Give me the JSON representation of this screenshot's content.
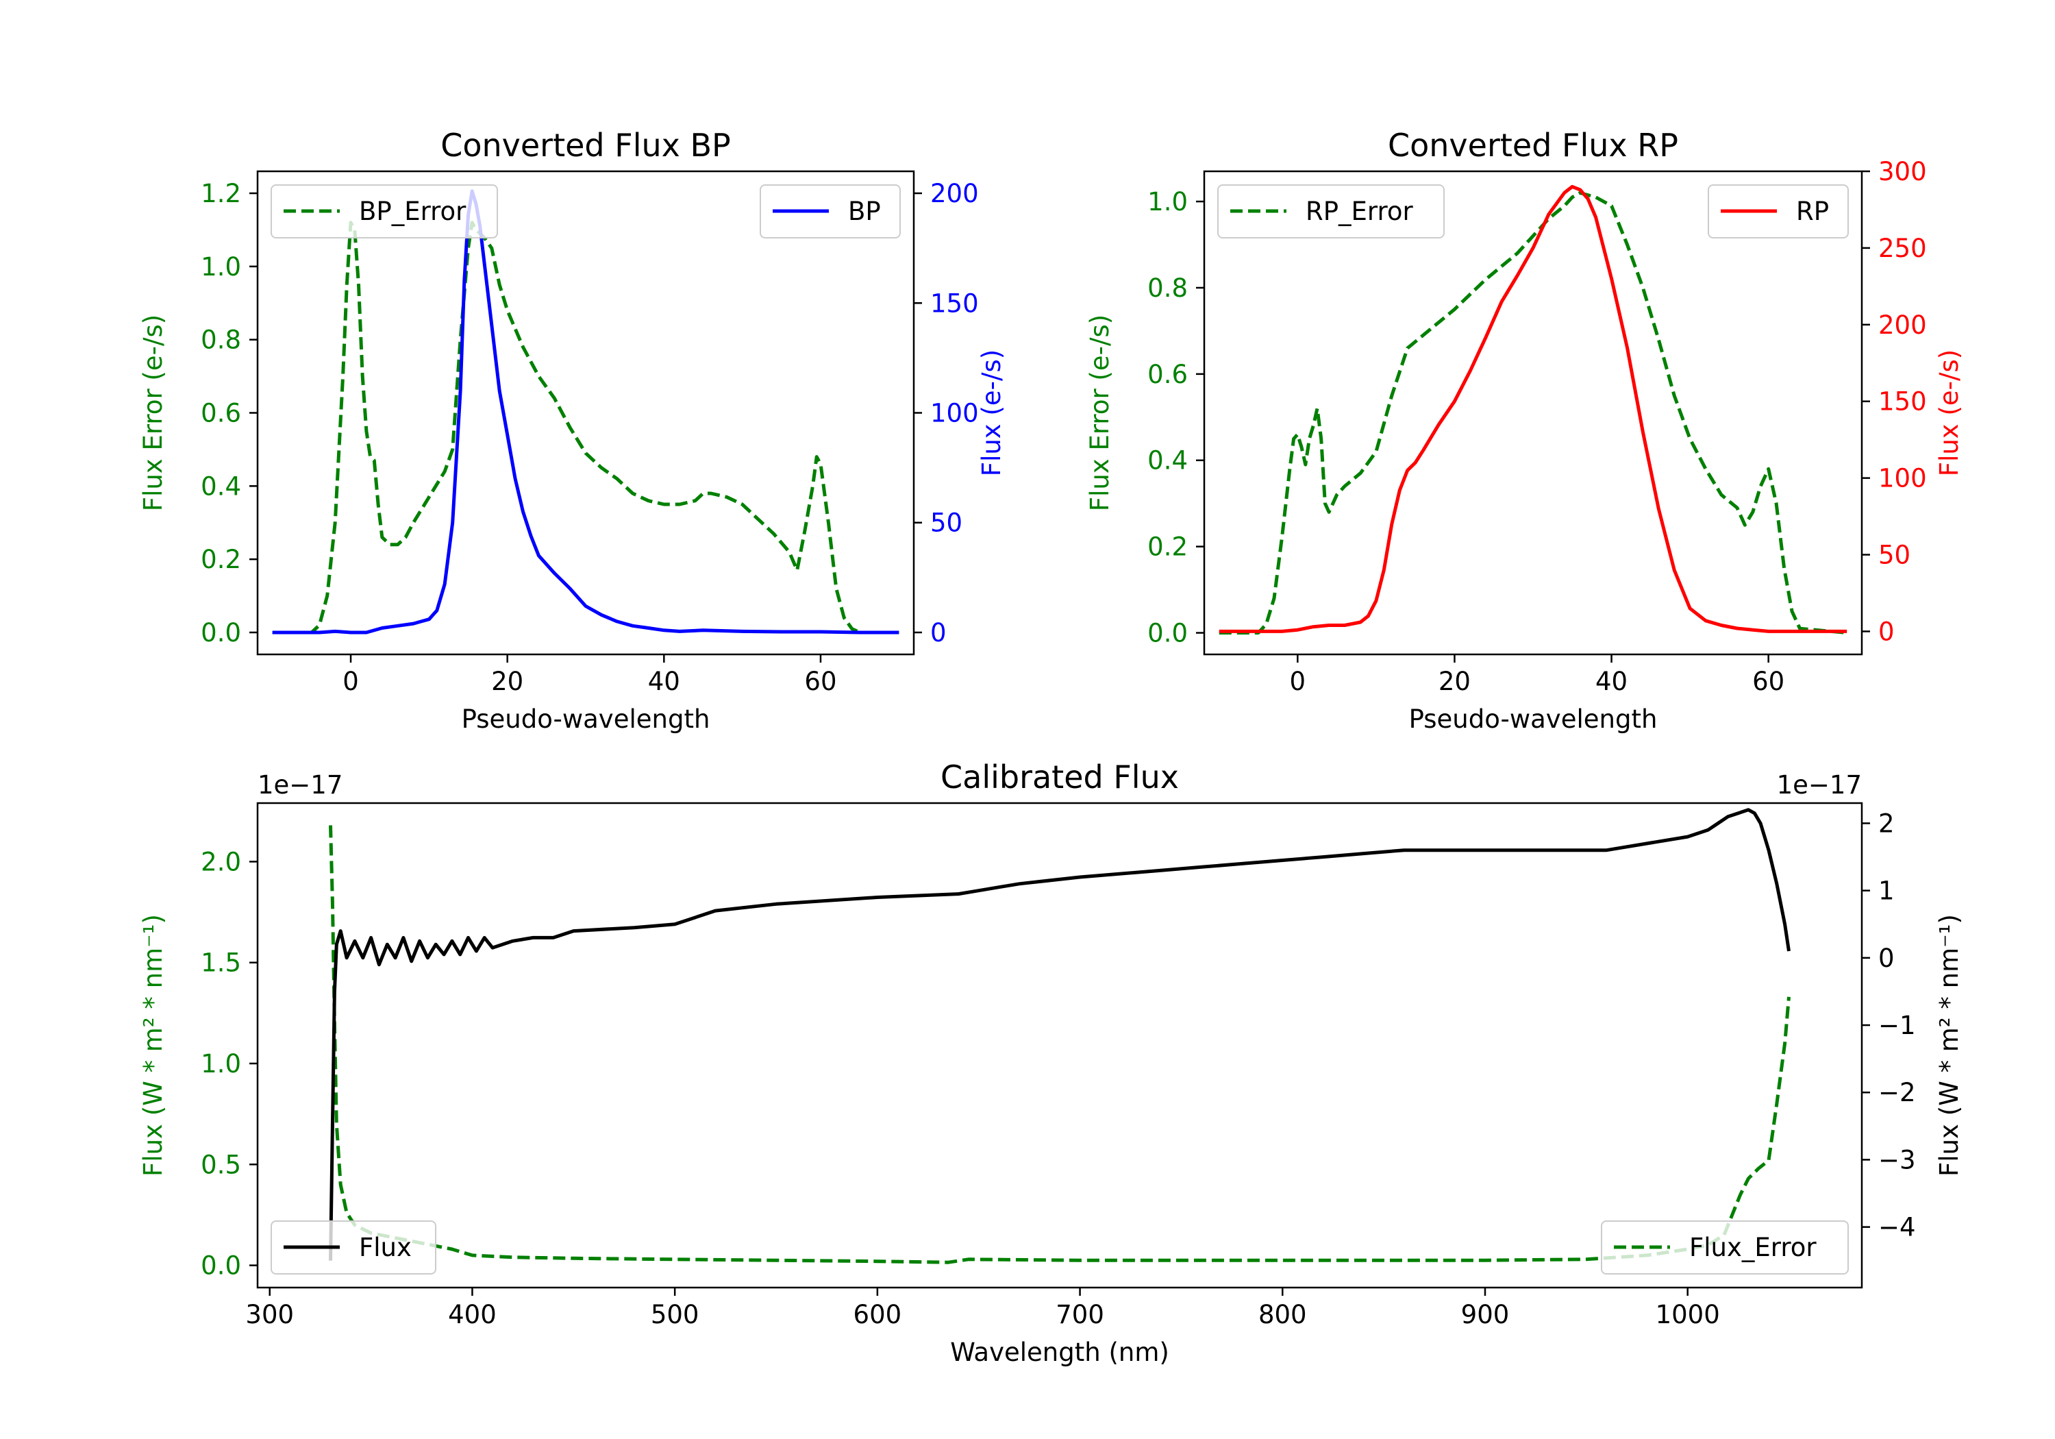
{
  "colors": {
    "green": "#008000",
    "blue": "#0000ff",
    "red": "#ff0000",
    "black": "#000000"
  },
  "chart_data": [
    {
      "id": "bp",
      "type": "line",
      "title": "Converted Flux BP",
      "xlabel": "Pseudo-wavelength",
      "ylabel_left": "Flux Error (e-/s)",
      "ylabel_right": "Flux (e-/s)",
      "xlim": [
        -11.9,
        71.9
      ],
      "ylim_left": [
        -0.06,
        1.26
      ],
      "ylim_right": [
        -10,
        210
      ],
      "xticks": [
        0,
        20,
        40,
        60
      ],
      "yticks_left": [
        0.0,
        0.2,
        0.4,
        0.6,
        0.8,
        1.0,
        1.2
      ],
      "yticks_right": [
        0,
        50,
        100,
        150,
        200
      ],
      "legend_left": "BP_Error",
      "legend_right": "BP",
      "series": [
        {
          "name": "BP_Error",
          "axis": "left",
          "style": "dashed",
          "color": "#008000",
          "x": [
            -10,
            -5,
            -4,
            -3,
            -2,
            -1,
            -0.5,
            0,
            0.5,
            1,
            1.5,
            2,
            2.5,
            3,
            3.5,
            4,
            5,
            6,
            7,
            8,
            10,
            12,
            13,
            14,
            15,
            15.5,
            16,
            17,
            18,
            19,
            20,
            22,
            24,
            26,
            28,
            30,
            32,
            34,
            36,
            38,
            40,
            42,
            44,
            45,
            46,
            48,
            50,
            52,
            54,
            56,
            57,
            58,
            59,
            59.5,
            60,
            61,
            62,
            63,
            64,
            65,
            70
          ],
          "y": [
            0,
            0,
            0.02,
            0.1,
            0.3,
            0.7,
            0.95,
            1.12,
            1.1,
            0.95,
            0.7,
            0.55,
            0.48,
            0.47,
            0.35,
            0.26,
            0.24,
            0.24,
            0.26,
            0.3,
            0.37,
            0.44,
            0.5,
            0.8,
            1.05,
            1.12,
            1.1,
            1.08,
            1.05,
            0.95,
            0.88,
            0.78,
            0.7,
            0.64,
            0.56,
            0.49,
            0.45,
            0.42,
            0.38,
            0.36,
            0.35,
            0.35,
            0.36,
            0.38,
            0.38,
            0.37,
            0.35,
            0.31,
            0.27,
            0.22,
            0.17,
            0.28,
            0.4,
            0.48,
            0.46,
            0.3,
            0.12,
            0.04,
            0.01,
            0,
            0
          ]
        },
        {
          "name": "BP",
          "axis": "right",
          "style": "solid",
          "color": "#0000ff",
          "x": [
            -10,
            -6,
            -4,
            -2,
            0,
            2,
            4,
            6,
            8,
            9,
            10,
            11,
            12,
            13,
            14,
            14.5,
            15,
            15.5,
            16,
            16.5,
            17,
            18,
            19,
            20,
            21,
            22,
            23,
            24,
            26,
            28,
            30,
            32,
            34,
            35,
            36,
            38,
            40,
            42,
            45,
            50,
            55,
            60,
            65,
            70
          ],
          "y": [
            0,
            0,
            0,
            0.5,
            0,
            0,
            2,
            3,
            4,
            5,
            6,
            10,
            22,
            50,
            110,
            160,
            190,
            201,
            195,
            185,
            170,
            140,
            110,
            90,
            70,
            55,
            44,
            35,
            27,
            20,
            12,
            8,
            5,
            4,
            3,
            2,
            1,
            0.5,
            1,
            0.5,
            0.3,
            0.3,
            0,
            0
          ]
        }
      ]
    },
    {
      "id": "rp",
      "type": "line",
      "title": "Converted Flux RP",
      "xlabel": "Pseudo-wavelength",
      "ylabel_left": "Flux Error (e-/s)",
      "ylabel_right": "Flux (e-/s)",
      "xlim": [
        -11.9,
        71.9
      ],
      "ylim_left": [
        -0.05,
        1.07
      ],
      "ylim_right": [
        -15,
        300
      ],
      "xticks": [
        0,
        20,
        40,
        60
      ],
      "yticks_left": [
        0.0,
        0.2,
        0.4,
        0.6,
        0.8,
        1.0
      ],
      "yticks_right": [
        0,
        50,
        100,
        150,
        200,
        250,
        300
      ],
      "legend_left": "RP_Error",
      "legend_right": "RP",
      "series": [
        {
          "name": "RP_Error",
          "axis": "left",
          "style": "dashed",
          "color": "#008000",
          "x": [
            -10,
            -5,
            -4,
            -3,
            -2,
            -1,
            -0.5,
            0,
            0.5,
            1,
            1.5,
            2,
            2.5,
            3,
            3.5,
            4,
            5,
            6,
            8,
            10,
            12,
            14,
            16,
            18,
            20,
            24,
            28,
            32,
            34,
            35,
            36,
            38,
            40,
            42,
            44,
            46,
            48,
            50,
            52,
            54,
            56,
            57,
            58,
            59,
            60,
            61,
            62,
            63,
            64,
            70
          ],
          "y": [
            0,
            0,
            0.02,
            0.08,
            0.22,
            0.38,
            0.45,
            0.46,
            0.43,
            0.39,
            0.45,
            0.48,
            0.52,
            0.45,
            0.3,
            0.28,
            0.32,
            0.34,
            0.37,
            0.42,
            0.55,
            0.66,
            0.69,
            0.72,
            0.75,
            0.82,
            0.88,
            0.96,
            0.99,
            1.01,
            1.02,
            1.01,
            0.99,
            0.9,
            0.8,
            0.68,
            0.55,
            0.45,
            0.38,
            0.32,
            0.29,
            0.25,
            0.28,
            0.34,
            0.38,
            0.3,
            0.15,
            0.05,
            0.01,
            0
          ]
        },
        {
          "name": "RP",
          "axis": "right",
          "style": "solid",
          "color": "#ff0000",
          "x": [
            -10,
            -4,
            -2,
            0,
            2,
            4,
            6,
            8,
            9,
            10,
            11,
            12,
            13,
            14,
            15,
            16,
            18,
            20,
            22,
            24,
            26,
            28,
            30,
            32,
            34,
            35,
            36,
            37,
            38,
            40,
            42,
            44,
            46,
            48,
            50,
            52,
            54,
            56,
            58,
            60,
            64,
            70
          ],
          "y": [
            0,
            0,
            0,
            1,
            3,
            4,
            4,
            6,
            10,
            20,
            40,
            70,
            92,
            105,
            110,
            118,
            135,
            150,
            170,
            192,
            215,
            232,
            250,
            272,
            286,
            290,
            288,
            282,
            270,
            230,
            185,
            130,
            80,
            40,
            15,
            7,
            4,
            2,
            1,
            0,
            0,
            0
          ]
        }
      ]
    },
    {
      "id": "cal",
      "type": "line",
      "title": "Calibrated Flux",
      "xlabel": "Wavelength (nm)",
      "ylabel_left": "Flux (W * m² * nm⁻¹)",
      "ylabel_right": "Flux (W * m² * nm⁻¹)",
      "offset_left": "1e−17",
      "offset_right": "1e−17",
      "xlim": [
        294,
        1086
      ],
      "ylim_left": [
        -0.11,
        2.29
      ],
      "ylim_right": [
        -4.9,
        2.3
      ],
      "xticks": [
        300,
        400,
        500,
        600,
        700,
        800,
        900,
        1000
      ],
      "yticks_left": [
        0.0,
        0.5,
        1.0,
        1.5,
        2.0
      ],
      "yticks_right": [
        -4,
        -3,
        -2,
        -1,
        0,
        1,
        2
      ],
      "yticklabels_left": [
        "0.0",
        "0.5",
        "1.0",
        "1.5",
        "2.0"
      ],
      "yticklabels_right": [
        "−4",
        "−3",
        "−2",
        "−1",
        "0",
        "1",
        "2"
      ],
      "legend_left": "Flux",
      "legend_right": "Flux_Error",
      "series": [
        {
          "name": "Flux_Error",
          "axis": "left",
          "style": "dashed",
          "color": "#008000",
          "x": [
            330,
            331,
            332,
            333,
            335,
            338,
            342,
            350,
            360,
            370,
            380,
            390,
            400,
            420,
            450,
            500,
            550,
            600,
            635,
            645,
            700,
            750,
            800,
            850,
            900,
            950,
            980,
            1000,
            1010,
            1018,
            1022,
            1026,
            1030,
            1035,
            1040,
            1044,
            1048,
            1050
          ],
          "y": [
            2.18,
            1.8,
            1.2,
            0.7,
            0.4,
            0.26,
            0.2,
            0.16,
            0.14,
            0.12,
            0.1,
            0.08,
            0.05,
            0.04,
            0.035,
            0.03,
            0.025,
            0.02,
            0.015,
            0.03,
            0.025,
            0.025,
            0.025,
            0.025,
            0.025,
            0.03,
            0.05,
            0.08,
            0.1,
            0.15,
            0.25,
            0.35,
            0.43,
            0.48,
            0.52,
            0.8,
            1.1,
            1.33
          ]
        },
        {
          "name": "Flux",
          "axis": "right",
          "style": "solid",
          "color": "#000000",
          "x": [
            330,
            331,
            332,
            333,
            335,
            338,
            342,
            346,
            350,
            354,
            358,
            362,
            366,
            370,
            374,
            378,
            382,
            386,
            390,
            394,
            398,
            402,
            406,
            410,
            420,
            430,
            440,
            450,
            480,
            500,
            520,
            550,
            600,
            640,
            650,
            660,
            670,
            700,
            740,
            760,
            780,
            800,
            820,
            840,
            860,
            880,
            900,
            920,
            960,
            980,
            1000,
            1010,
            1015,
            1020,
            1025,
            1030,
            1033,
            1036,
            1040,
            1044,
            1048,
            1050
          ],
          "y": [
            -4.5,
            -2.5,
            -0.5,
            0.2,
            0.4,
            0.0,
            0.25,
            0.0,
            0.3,
            -0.1,
            0.2,
            0.0,
            0.3,
            -0.05,
            0.25,
            0.0,
            0.2,
            0.05,
            0.25,
            0.05,
            0.3,
            0.1,
            0.3,
            0.15,
            0.25,
            0.3,
            0.3,
            0.4,
            0.45,
            0.5,
            0.7,
            0.8,
            0.9,
            0.95,
            1.0,
            1.05,
            1.1,
            1.2,
            1.3,
            1.35,
            1.4,
            1.45,
            1.5,
            1.55,
            1.6,
            1.6,
            1.6,
            1.6,
            1.6,
            1.7,
            1.8,
            1.9,
            2.0,
            2.1,
            2.15,
            2.2,
            2.15,
            2.0,
            1.6,
            1.1,
            0.5,
            0.1
          ]
        }
      ]
    }
  ]
}
